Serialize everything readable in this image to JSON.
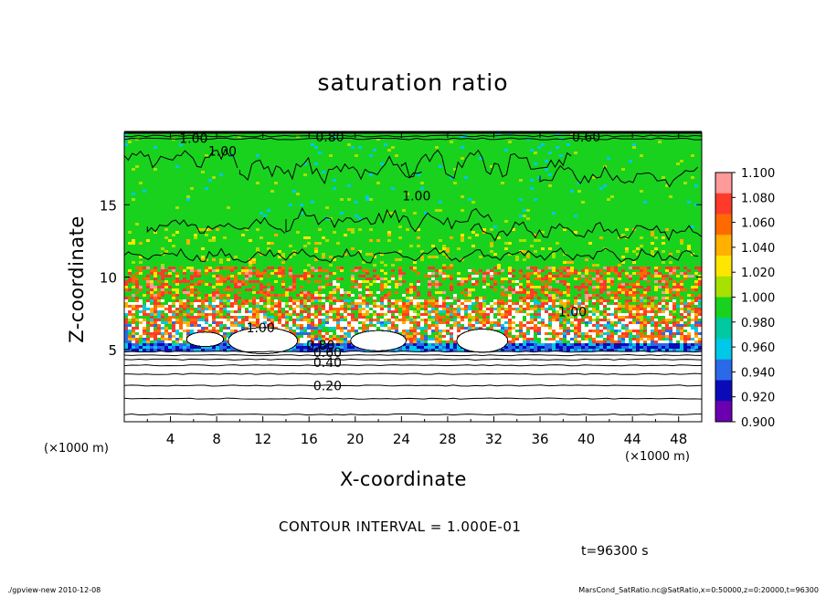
{
  "chart_data": {
    "type": "heatmap",
    "title": "saturation ratio",
    "xlabel": "X-coordinate",
    "ylabel": "Z-coordinate",
    "x_unit_label": "(×1000 m)",
    "x_ticks": [
      4,
      8,
      12,
      16,
      20,
      24,
      28,
      32,
      36,
      40,
      44,
      48
    ],
    "y_ticks": [
      5,
      10,
      15
    ],
    "xlim": [
      0,
      50
    ],
    "ylim": [
      0,
      20
    ],
    "colorbar": {
      "levels": [
        "1.100",
        "1.080",
        "1.060",
        "1.040",
        "1.020",
        "1.000",
        "0.980",
        "0.960",
        "0.940",
        "0.920",
        "0.900"
      ],
      "colors": [
        "#ff9a9a",
        "#ff3a2a",
        "#ff6a00",
        "#ffb000",
        "#ffe600",
        "#a8e000",
        "#19d21e",
        "#00c8a0",
        "#00c8e8",
        "#2a6ae8",
        "#0a0ab8",
        "#6a00b0"
      ]
    },
    "contour_labels": [
      {
        "text": "1.00",
        "x": 6.0,
        "z": 19.6
      },
      {
        "text": "1.00",
        "x": 8.5,
        "z": 18.7
      },
      {
        "text": "0.80",
        "x": 17.8,
        "z": 19.7
      },
      {
        "text": "0.60",
        "x": 40.0,
        "z": 19.7
      },
      {
        "text": "1.00",
        "x": 25.3,
        "z": 15.6
      },
      {
        "text": "1.00",
        "x": 11.8,
        "z": 6.5
      },
      {
        "text": "1.00",
        "x": 38.8,
        "z": 7.6
      },
      {
        "text": "0.80",
        "x": 17.0,
        "z": 5.3
      },
      {
        "text": "0.60",
        "x": 17.6,
        "z": 4.8
      },
      {
        "text": "0.40",
        "x": 17.6,
        "z": 4.1
      },
      {
        "text": "0.20",
        "x": 17.6,
        "z": 2.5
      }
    ],
    "contour_interval": "CONTOUR INTERVAL = 1.000E-01",
    "time": "t=96300 s",
    "grid": false,
    "colorbar_position": "right"
  },
  "footer": {
    "left": "./gpview-new   2010-12-08",
    "right": "MarsCond_SatRatio.nc@SatRatio,x=0:50000,z=0:20000,t=96300"
  }
}
